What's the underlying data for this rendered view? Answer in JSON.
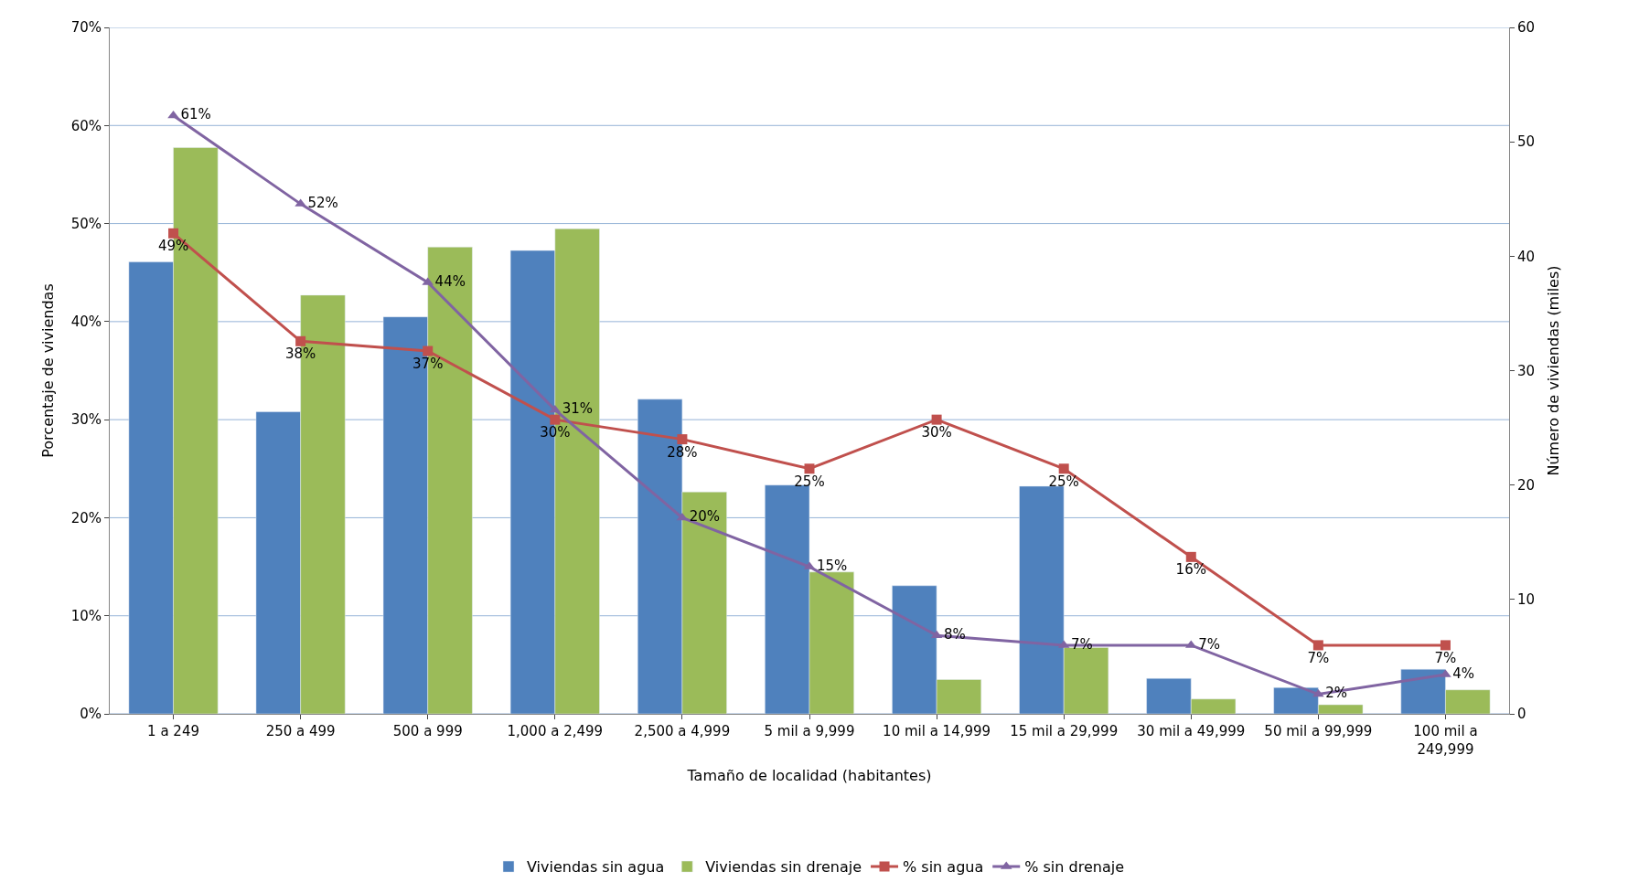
{
  "chart_data": {
    "type": "bar",
    "xlabel": "Tamaño de localidad (habitantes)",
    "ylabel": "Porcentaje de viviendas",
    "y2label": "Número de viviendas (miles)",
    "categories": [
      "1 a 249",
      "250 a 499",
      "500 a 999",
      "1,000 a 2,499",
      "2,500 a 4,999",
      "5 mil a 9,999",
      "10 mil a 14,999",
      "15 mil a 29,999",
      "30 mil a 49,999",
      "50 mil a 99,999",
      "100 mil a 249,999"
    ],
    "series": [
      {
        "name": "Viviendas sin agua",
        "axis": "y2",
        "color": "#4f81bd",
        "values": [
          39.5,
          26.4,
          34.7,
          40.5,
          27.5,
          20.0,
          11.2,
          19.9,
          3.1,
          2.3,
          3.9
        ]
      },
      {
        "name": "Viviendas sin drenaje",
        "axis": "y2",
        "color": "#9bbb59",
        "values": [
          49.5,
          36.6,
          40.8,
          42.4,
          19.4,
          12.4,
          3.0,
          5.8,
          1.3,
          0.8,
          2.1
        ]
      },
      {
        "name": "% sin agua",
        "type": "line",
        "color": "#c0504d",
        "marker": "square",
        "value_labels": [
          "49%",
          "38%",
          "37%",
          "30%",
          "28%",
          "25%",
          "30%",
          "25%",
          "16%",
          "7%",
          "7%"
        ],
        "values": [
          49,
          38,
          37,
          30,
          28,
          25,
          30,
          25,
          16,
          7,
          7
        ]
      },
      {
        "name": "% sin drenaje",
        "type": "line",
        "color": "#8064a2",
        "marker": "triangle",
        "value_labels": [
          "61%",
          "52%",
          "44%",
          "31%",
          "20%",
          "15%",
          "8%",
          "7%",
          "7%",
          "2%",
          "4%"
        ],
        "values": [
          61,
          52,
          44,
          31,
          20,
          15,
          8,
          7,
          7,
          2,
          4
        ]
      }
    ],
    "ylim": [
      0,
      70
    ],
    "yticks": [
      {
        "value": 0,
        "label": "0%"
      },
      {
        "value": 10,
        "label": "10%"
      },
      {
        "value": 20,
        "label": "20%"
      },
      {
        "value": 30,
        "label": "30%"
      },
      {
        "value": 40,
        "label": "40%"
      },
      {
        "value": 50,
        "label": "50%"
      },
      {
        "value": 60,
        "label": "60%"
      },
      {
        "value": 70,
        "label": "70%"
      }
    ],
    "y2lim": [
      0,
      60
    ],
    "y2ticks": [
      0,
      10,
      20,
      30,
      40,
      50,
      60
    ],
    "grid": "y",
    "legend": "bottom"
  }
}
